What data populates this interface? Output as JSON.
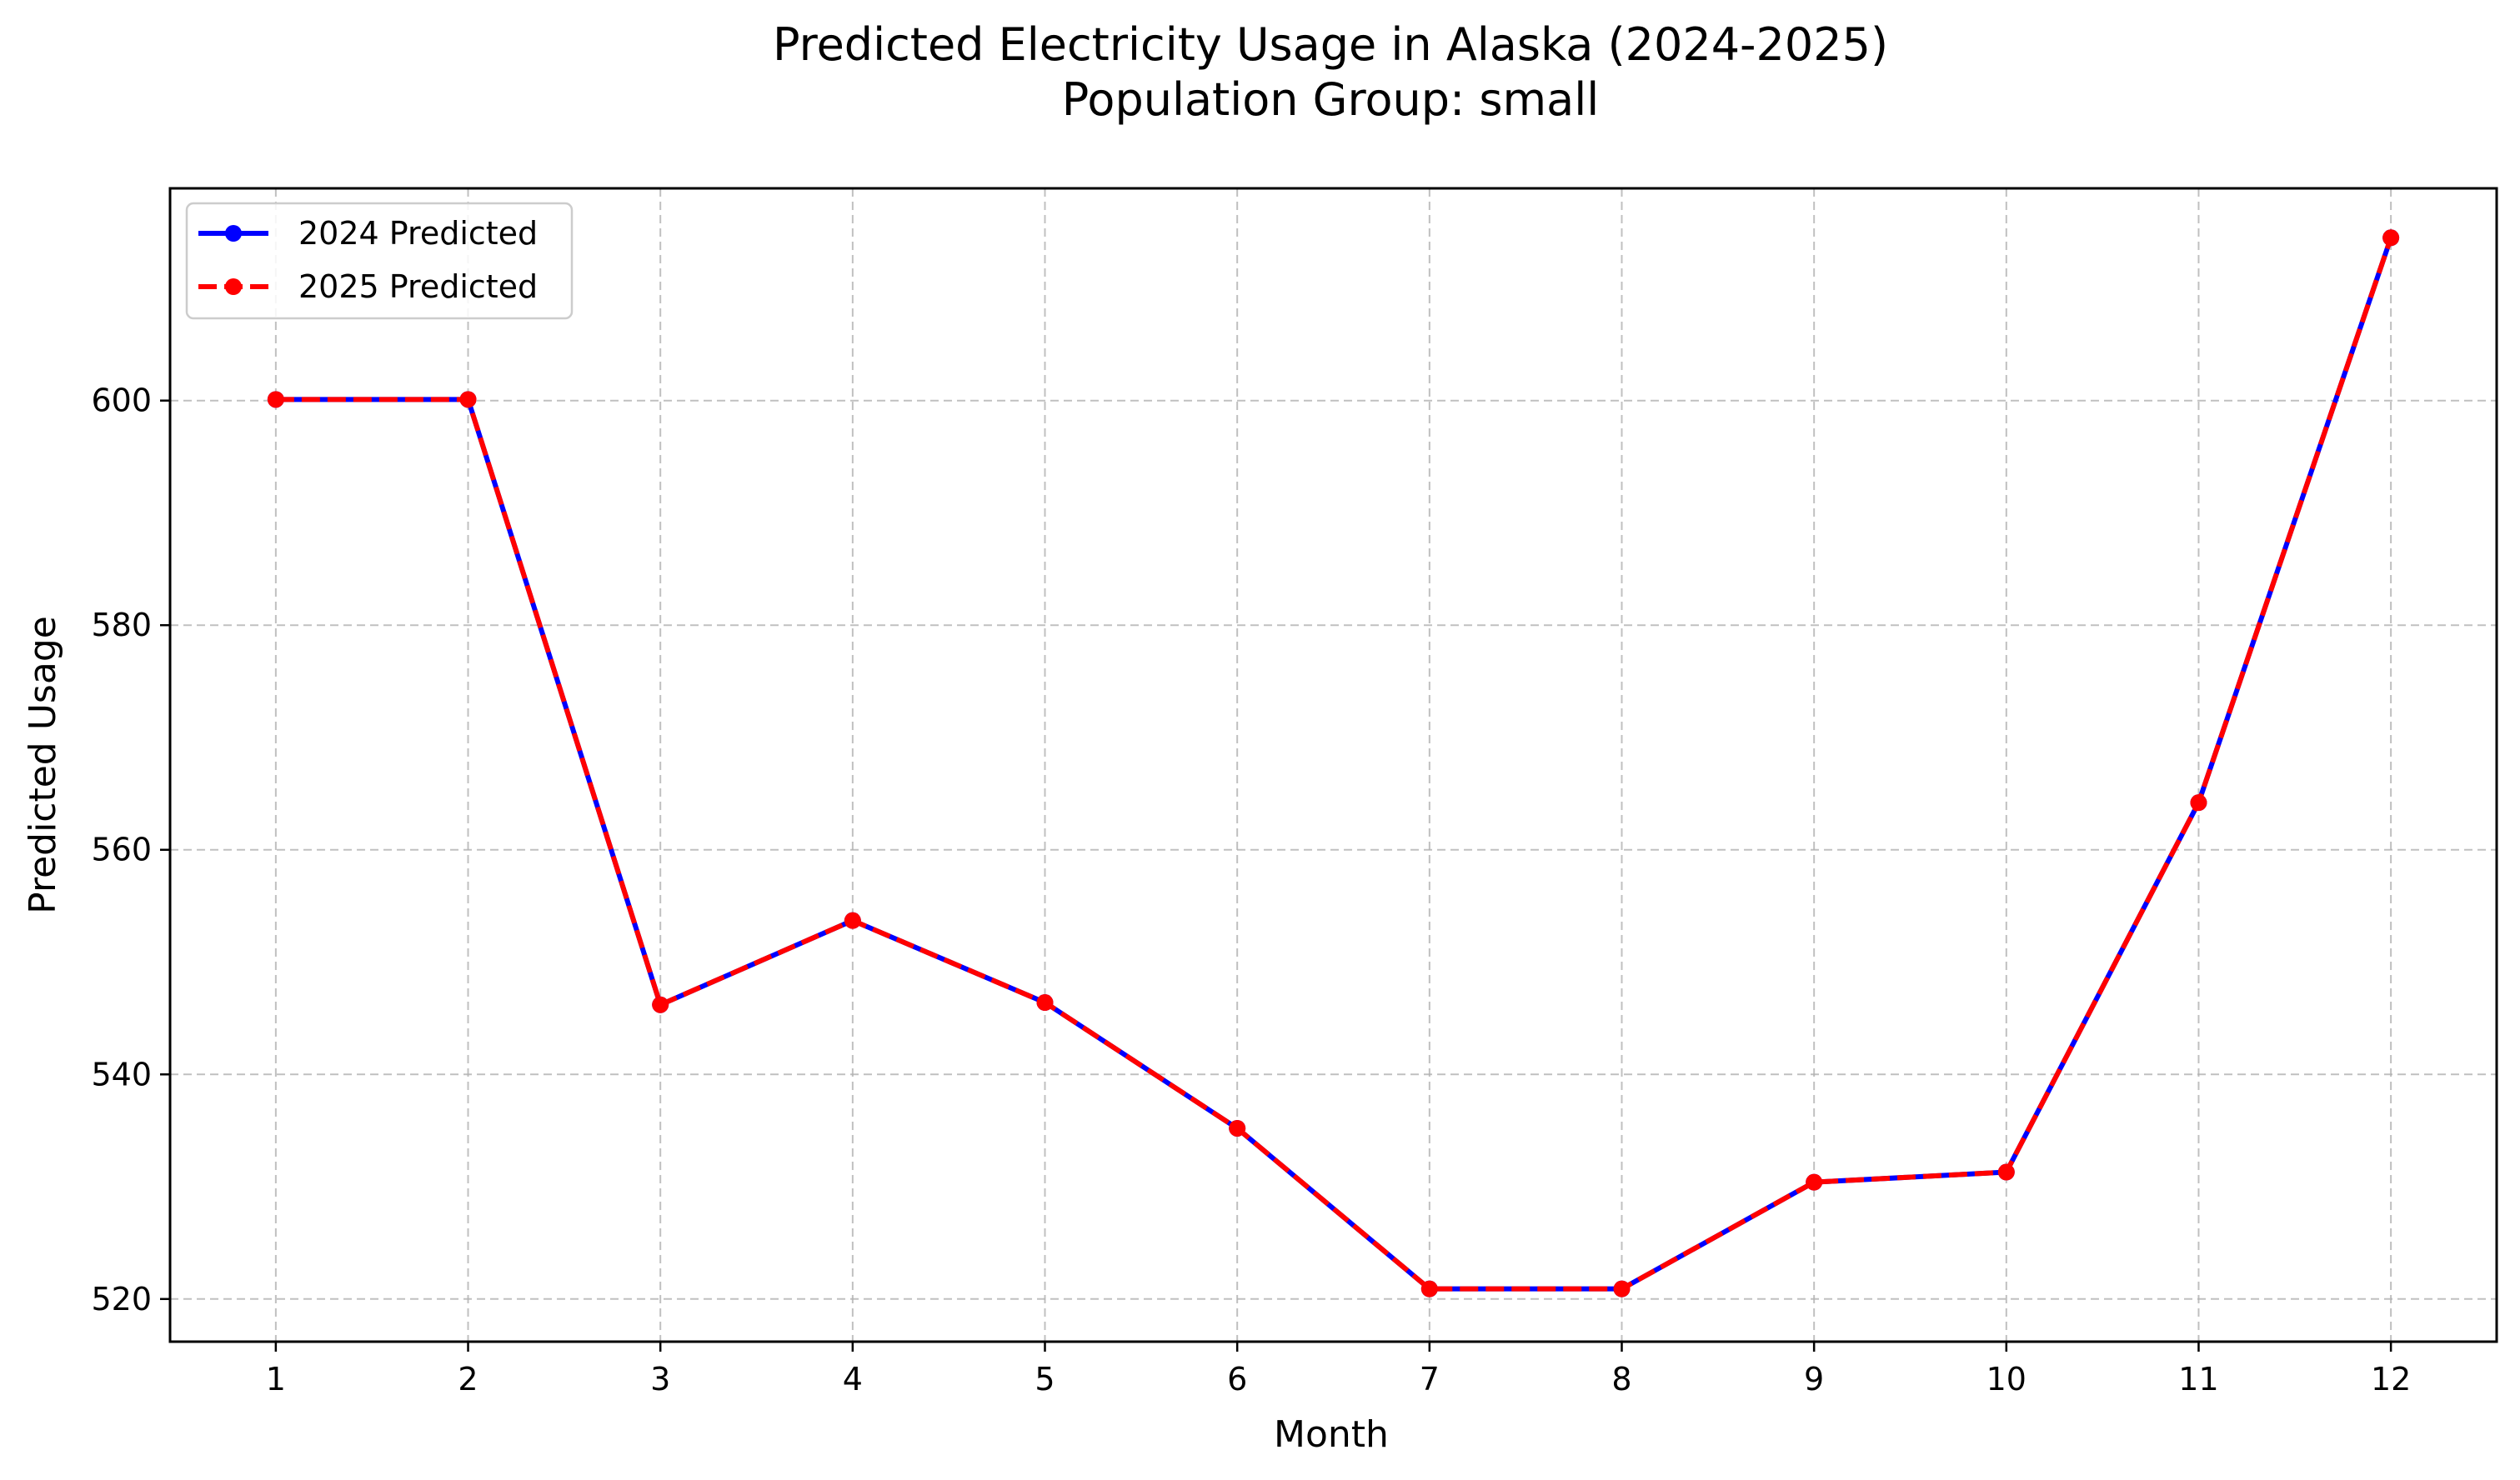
{
  "chart_data": {
    "type": "line",
    "title": "Predicted Electricity Usage in Alaska (2024-2025)",
    "subtitle": "Population Group: small",
    "xlabel": "Month",
    "ylabel": "Predicted Usage",
    "x": [
      1,
      2,
      3,
      4,
      5,
      6,
      7,
      8,
      9,
      10,
      11,
      12
    ],
    "x_tick_labels": [
      "1",
      "2",
      "3",
      "4",
      "5",
      "6",
      "7",
      "8",
      "9",
      "10",
      "11",
      "12"
    ],
    "y_ticks": [
      520,
      540,
      560,
      580,
      600
    ],
    "y_tick_labels": [
      "520",
      "540",
      "560",
      "580",
      "600"
    ],
    "xlim": [
      0.45,
      12.55
    ],
    "ylim": [
      516.2,
      618.9
    ],
    "grid": true,
    "grid_style": "dashed",
    "legend_position": "upper-left",
    "series": [
      {
        "name": "2024 Predicted",
        "color": "#0000ff",
        "line_style": "solid",
        "marker": "circle",
        "values": [
          600.1,
          600.1,
          546.2,
          553.7,
          546.4,
          535.2,
          520.9,
          520.9,
          530.4,
          531.3,
          564.2,
          614.5
        ]
      },
      {
        "name": "2025 Predicted",
        "color": "#ff0000",
        "line_style": "dashed",
        "marker": "circle",
        "values": [
          600.1,
          600.1,
          546.2,
          553.7,
          546.4,
          535.2,
          520.9,
          520.9,
          530.4,
          531.3,
          564.2,
          614.5
        ]
      }
    ]
  }
}
